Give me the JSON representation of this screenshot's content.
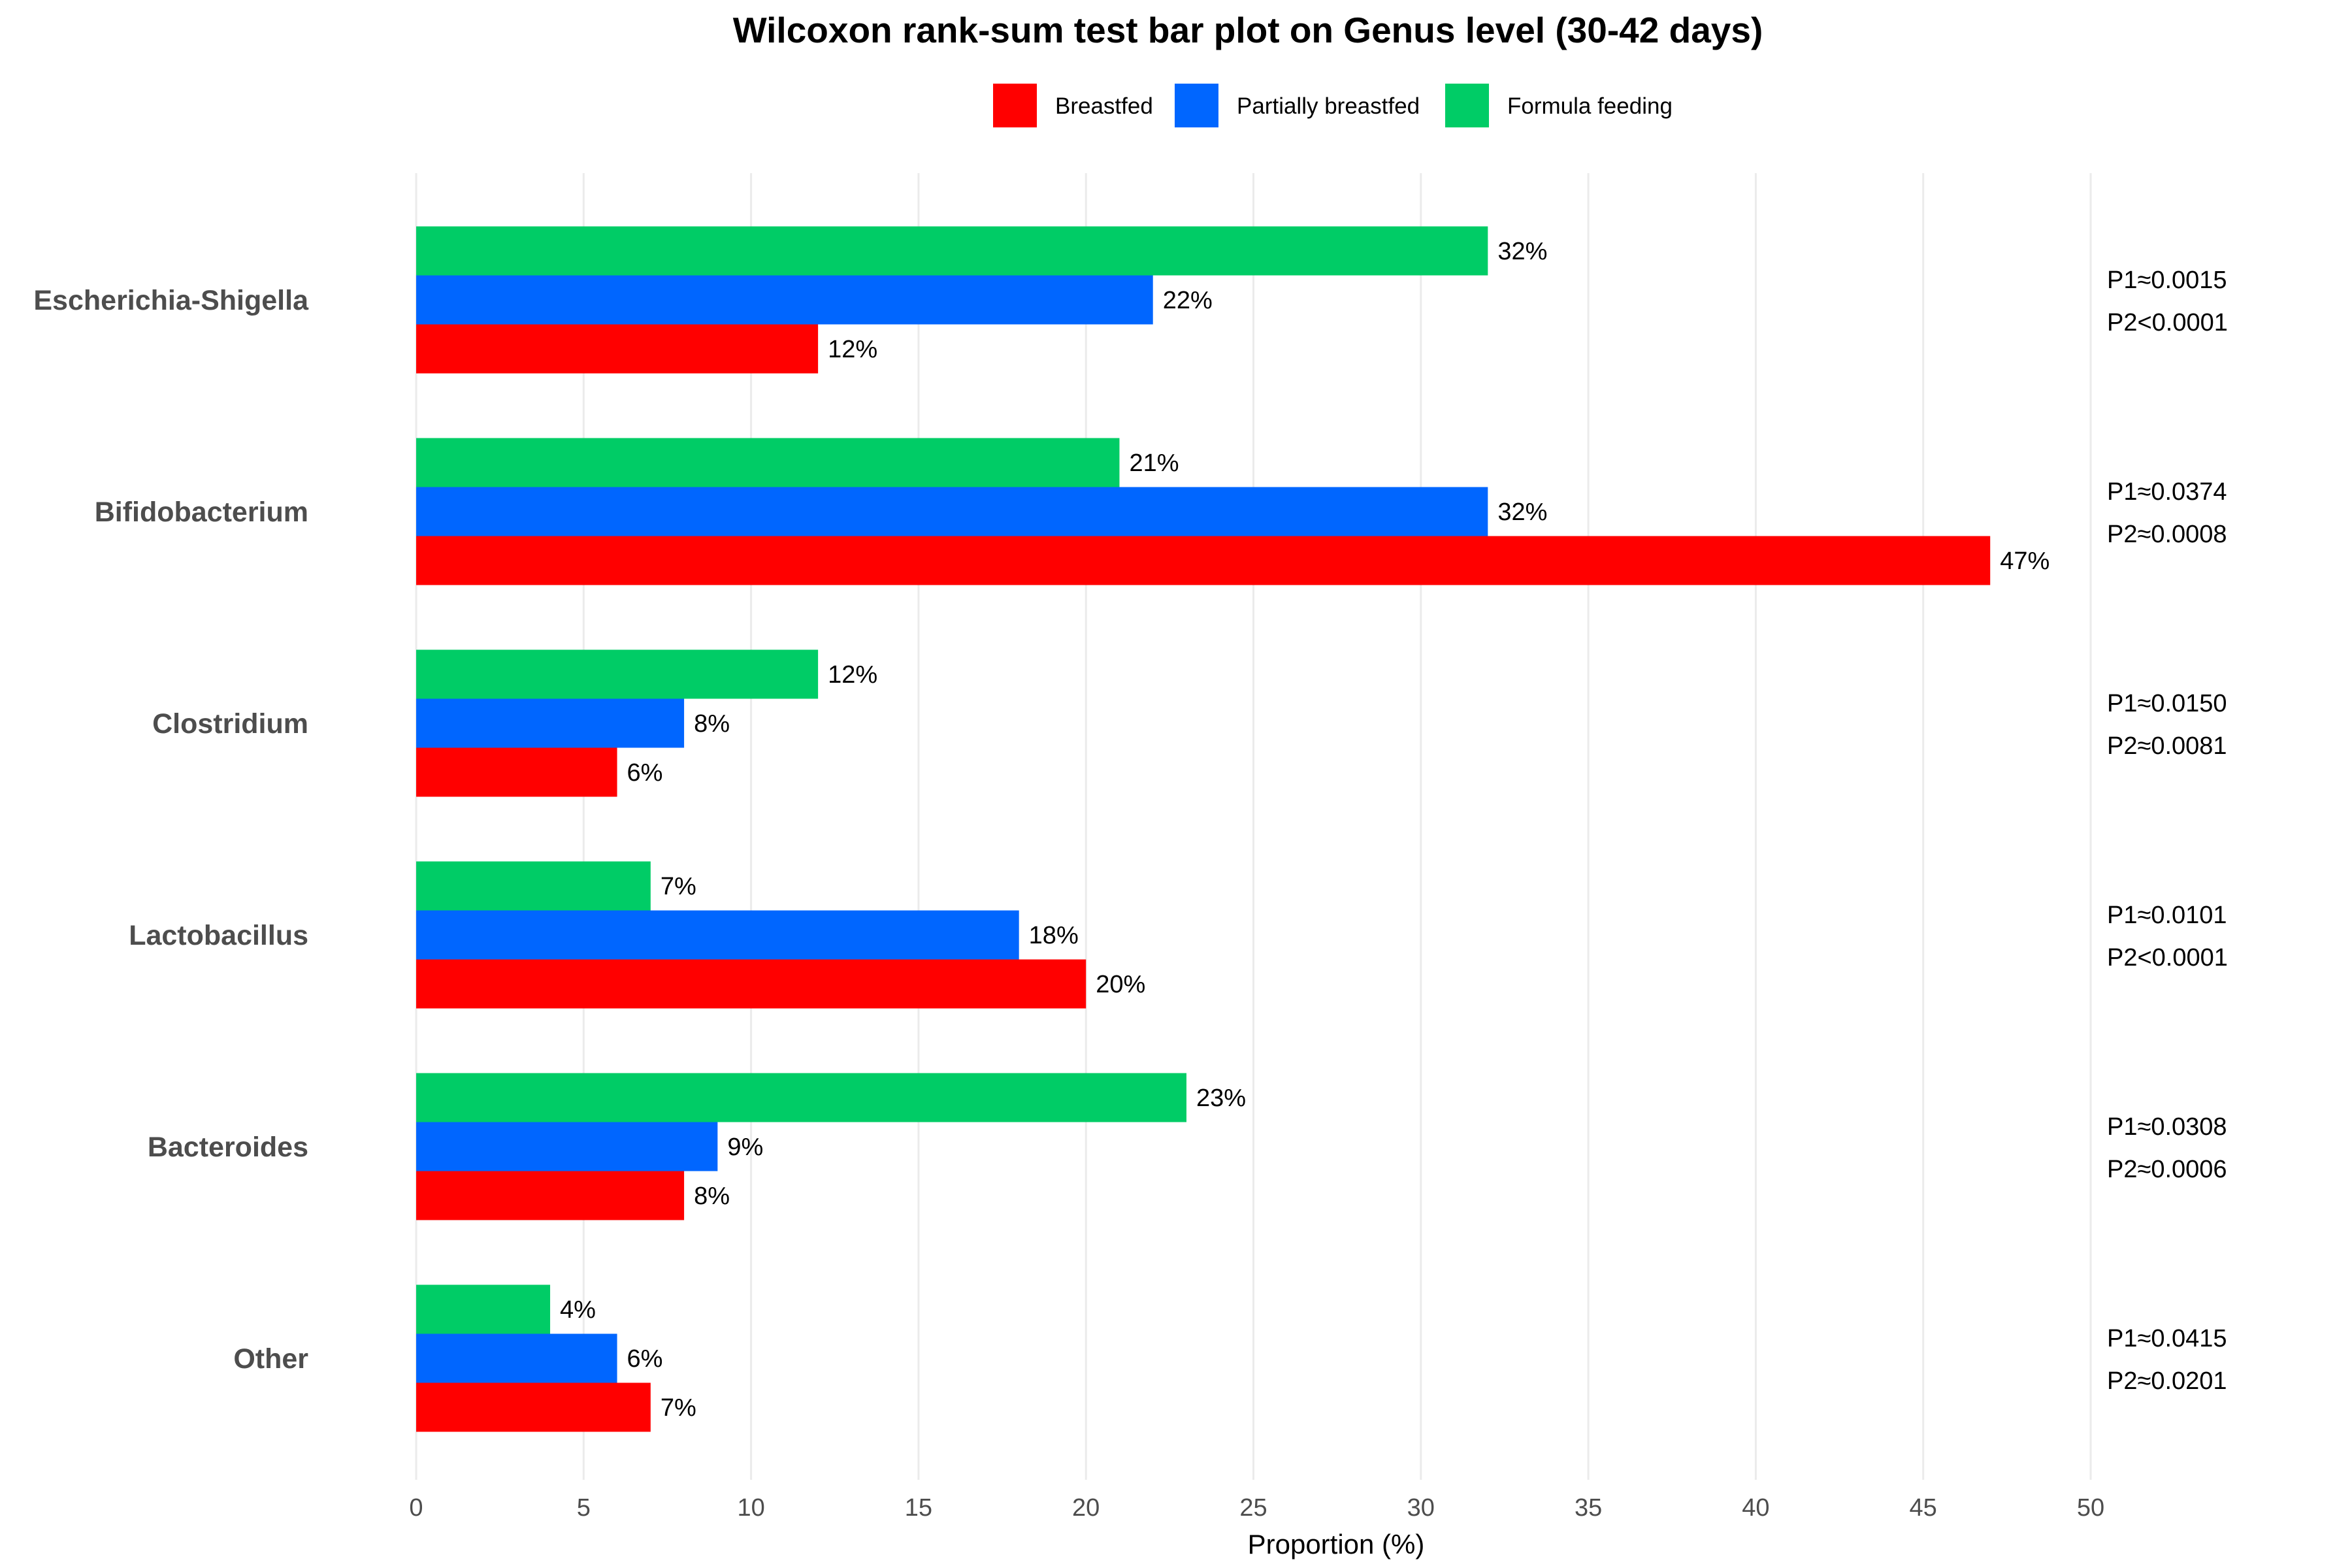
{
  "chart_data": {
    "type": "bar",
    "orientation": "horizontal",
    "title": "Wilcoxon rank-sum test bar plot on Genus level (30-42 days)",
    "xlabel": "Proportion (%)",
    "ylabel": "",
    "xlim": [
      0,
      50
    ],
    "x_ticks": [
      0,
      5,
      10,
      15,
      20,
      25,
      30,
      35,
      40,
      45,
      50
    ],
    "grid": "vertical-major",
    "legend_position": "top-center",
    "categories": [
      "Escherichia-Shigella",
      "Bifidobacterium",
      "Clostridium",
      "Lactobacillus",
      "Bacteroides",
      "Other"
    ],
    "series": [
      {
        "name": "Breastfed",
        "color": "#ff0000",
        "values": [
          12,
          47,
          6,
          20,
          8,
          7
        ],
        "labels": [
          "12%",
          "47%",
          "6%",
          "20%",
          "8%",
          "7%"
        ]
      },
      {
        "name": "Partially breastfed",
        "color": "#0066ff",
        "values": [
          22,
          32,
          8,
          18,
          9,
          6
        ],
        "labels": [
          "22%",
          "32%",
          "8%",
          "18%",
          "9%",
          "6%"
        ]
      },
      {
        "name": "Formula feeding",
        "color": "#00cc66",
        "values": [
          32,
          21,
          12,
          7,
          23,
          4
        ],
        "labels": [
          "32%",
          "21%",
          "12%",
          "7%",
          "23%",
          "4%"
        ]
      }
    ],
    "p_values": [
      {
        "p1": "P1≈0.0015",
        "p2": "P2<0.0001"
      },
      {
        "p1": "P1≈0.0374",
        "p2": "P2≈0.0008"
      },
      {
        "p1": "P1≈0.0150",
        "p2": "P2≈0.0081"
      },
      {
        "p1": "P1≈0.0101",
        "p2": "P2<0.0001"
      },
      {
        "p1": "P1≈0.0308",
        "p2": "P2≈0.0006"
      },
      {
        "p1": "P1≈0.0415",
        "p2": "P2≈0.0201"
      }
    ]
  }
}
